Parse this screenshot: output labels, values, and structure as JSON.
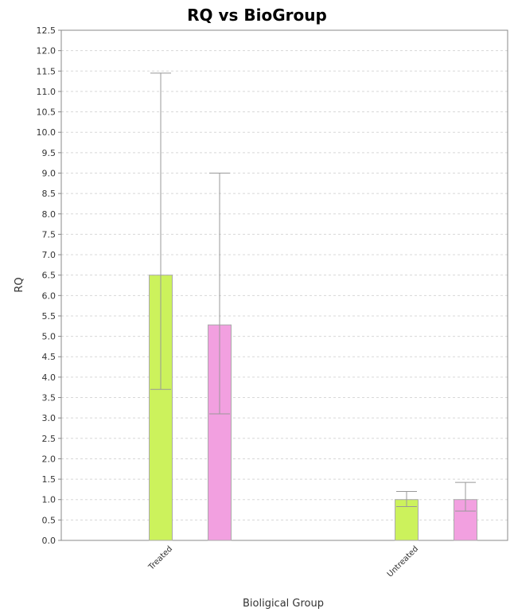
{
  "chart_data": {
    "type": "bar",
    "title": "RQ vs BioGroup",
    "xlabel": "Bioligical Group",
    "ylabel": "RQ",
    "ylim": [
      0,
      12.5
    ],
    "yticks": [
      "0.0",
      "0.5",
      "1.0",
      "1.5",
      "2.0",
      "2.5",
      "3.0",
      "3.5",
      "4.0",
      "4.5",
      "5.0",
      "5.5",
      "6.0",
      "6.5",
      "7.0",
      "7.5",
      "8.0",
      "8.5",
      "9.0",
      "9.5",
      "10.0",
      "10.5",
      "11.0",
      "11.5",
      "12.0",
      "12.5"
    ],
    "grid": true,
    "categories": [
      "Treated",
      "Untreated"
    ],
    "series": [
      {
        "color": "#ccf25c",
        "values": [
          6.5,
          1.0
        ],
        "error_low": [
          3.7,
          0.83
        ],
        "error_high": [
          11.45,
          1.2
        ]
      },
      {
        "color": "#f2a0e0",
        "values": [
          5.28,
          1.0
        ],
        "error_low": [
          3.1,
          0.72
        ],
        "error_high": [
          9.0,
          1.42
        ]
      }
    ]
  }
}
